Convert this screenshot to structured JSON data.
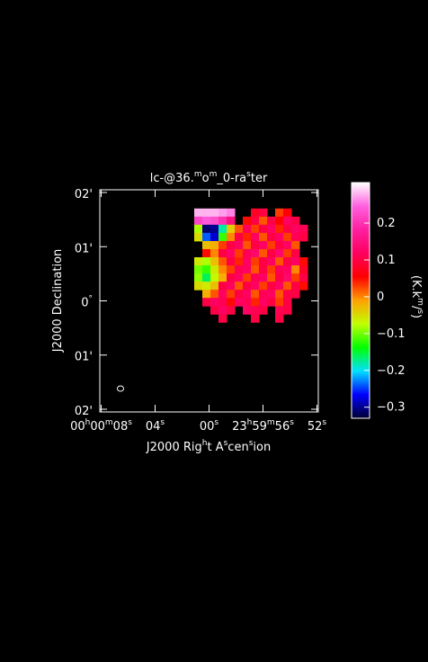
{
  "chart_data": {
    "type": "heatmap",
    "title": "lc-@36.mom_0-raster",
    "xlabel": "J2000 Right Ascension",
    "ylabel": "J2000 Declination",
    "colorbar_label": "(K.km/s)",
    "xlim": [
      8.1,
      -8.1
    ],
    "ylim": [
      -2.05,
      2.05
    ],
    "xticks": [
      {
        "value": 8,
        "label": "00h00m08s"
      },
      {
        "value": 4,
        "label": "04s"
      },
      {
        "value": 0,
        "label": "00s"
      },
      {
        "value": -4,
        "label": "23h59m56s"
      },
      {
        "value": -8,
        "label": "52s"
      }
    ],
    "yticks": [
      {
        "value": 2,
        "label": "02'"
      },
      {
        "value": 1,
        "label": "01'"
      },
      {
        "value": 0,
        "label": "0°"
      },
      {
        "value": -1,
        "label": "01'"
      },
      {
        "value": -2,
        "label": "02'"
      }
    ],
    "clim": [
      -0.33,
      0.31
    ],
    "cticks": [
      {
        "value": 0.2,
        "label": "0.2"
      },
      {
        "value": 0.1,
        "label": "0.1"
      },
      0,
      {
        "value": -0.1,
        "label": "−0.1"
      },
      {
        "value": -0.2,
        "label": "−0.2"
      },
      {
        "value": -0.3,
        "label": "−0.3"
      }
    ],
    "colormap": [
      "#000030",
      "#0000ff",
      "#00e0ff",
      "#00ff00",
      "#c0ff00",
      "#ffa000",
      "#ff0000",
      "#ff0060",
      "#ff20a0",
      "#ff60e0",
      "#ffffff"
    ],
    "x": [
      0.8,
      0.2,
      -0.4,
      -1.0,
      -1.6,
      -2.2,
      -2.8,
      -3.4,
      -4.0,
      -4.6,
      -5.2,
      -5.8,
      -6.4,
      -7.0
    ],
    "y": [
      1.63,
      1.48,
      1.33,
      1.18,
      1.03,
      0.88,
      0.73,
      0.58,
      0.43,
      0.28,
      0.13,
      -0.02,
      -0.17,
      -0.32
    ],
    "z": [
      [
        0.28,
        0.28,
        0.28,
        0.27,
        0.26,
        null,
        null,
        0.08,
        0.1,
        null,
        0.03,
        0.06,
        null,
        null
      ],
      [
        0.22,
        0.24,
        0.23,
        0.2,
        0.15,
        null,
        0.05,
        0.1,
        0.02,
        0.1,
        0.06,
        0.12,
        0.1,
        null
      ],
      [
        -0.08,
        -0.31,
        -0.3,
        -0.18,
        -0.04,
        0.02,
        0.11,
        0.03,
        0.1,
        0.12,
        0.04,
        0.1,
        0.12,
        0.11
      ],
      [
        -0.05,
        -0.24,
        -0.28,
        -0.12,
        0.0,
        0.1,
        0.04,
        0.12,
        0.02,
        0.1,
        0.12,
        0.03,
        0.11,
        0.1
      ],
      [
        null,
        -0.03,
        -0.02,
        0.03,
        0.1,
        0.12,
        0.02,
        0.1,
        0.12,
        0.03,
        0.1,
        0.12,
        0.02,
        null
      ],
      [
        null,
        0.05,
        0.0,
        0.1,
        0.12,
        0.03,
        0.11,
        0.13,
        0.02,
        0.1,
        0.13,
        0.03,
        0.1,
        null
      ],
      [
        -0.06,
        -0.08,
        -0.03,
        0.02,
        0.1,
        0.04,
        0.12,
        0.03,
        0.1,
        0.12,
        0.02,
        0.1,
        0.12,
        0.05
      ],
      [
        -0.1,
        -0.12,
        -0.06,
        0.0,
        0.03,
        0.11,
        0.12,
        0.02,
        0.1,
        0.03,
        0.11,
        0.12,
        0.0,
        0.08
      ],
      [
        -0.09,
        -0.16,
        -0.07,
        -0.02,
        0.1,
        0.12,
        0.03,
        0.11,
        0.12,
        0.02,
        0.1,
        0.13,
        0.03,
        0.1
      ],
      [
        -0.05,
        -0.06,
        -0.03,
        0.1,
        0.12,
        0.02,
        0.1,
        0.12,
        0.03,
        0.1,
        0.12,
        0.02,
        0.1,
        0.05
      ],
      [
        null,
        -0.02,
        0.02,
        0.12,
        0.03,
        0.1,
        0.12,
        0.02,
        0.11,
        0.12,
        0.02,
        0.1,
        0.1,
        null
      ],
      [
        null,
        0.1,
        0.12,
        0.11,
        0.05,
        0.12,
        0.11,
        0.04,
        0.12,
        0.1,
        0.03,
        0.1,
        null,
        null
      ],
      [
        null,
        null,
        0.1,
        0.12,
        0.1,
        null,
        0.12,
        0.11,
        0.1,
        null,
        0.11,
        0.1,
        null,
        null
      ],
      [
        null,
        null,
        null,
        0.1,
        null,
        null,
        null,
        0.1,
        null,
        null,
        0.1,
        null,
        null,
        null
      ]
    ]
  }
}
